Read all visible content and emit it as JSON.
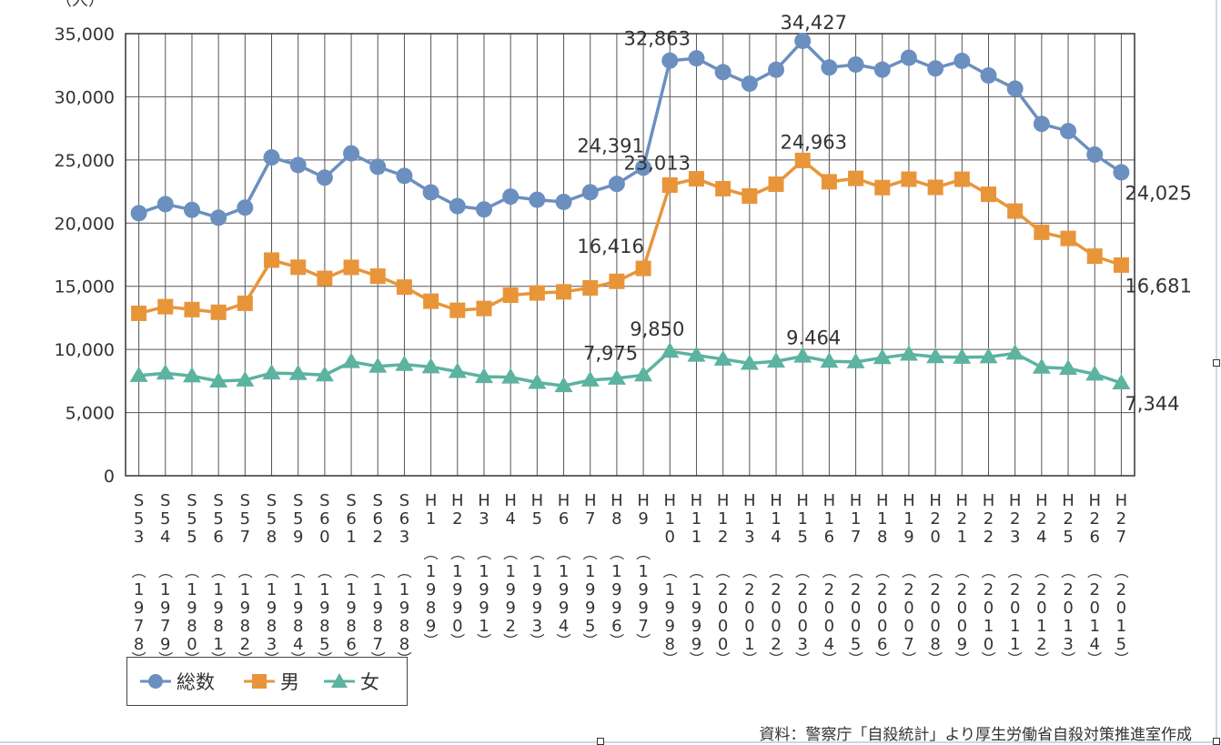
{
  "chart_data": {
    "type": "line",
    "unit_label": "（人）",
    "ylim": [
      0,
      35000
    ],
    "yticks": [
      "0",
      "5,000",
      "10,000",
      "15,000",
      "20,000",
      "25,000",
      "30,000",
      "35,000"
    ],
    "categories": [
      "S53（1978）",
      "S54（1979）",
      "S55（1980）",
      "S56（1981）",
      "S57（1982）",
      "S58（1983）",
      "S59（1984）",
      "S60（1985）",
      "S61（1986）",
      "S62（1987）",
      "S63（1988）",
      "H1（1989）",
      "H2（1990）",
      "H3（1991）",
      "H4（1992）",
      "H5（1993）",
      "H6（1994）",
      "H7（1995）",
      "H8（1996）",
      "H9（1997）",
      "H10（1998）",
      "H11（1999）",
      "H12（2000）",
      "H13（2001）",
      "H14（2002）",
      "H15（2003）",
      "H16（2004）",
      "H17（2005）",
      "H18（2006）",
      "H19（2007）",
      "H20（2008）",
      "H21（2009）",
      "H22（2010）",
      "H23（2011）",
      "H24（2012）",
      "H25（2013）",
      "H26（2014）",
      "H27（2015）"
    ],
    "era_labels": [
      "S53",
      "S54",
      "S55",
      "S56",
      "S57",
      "S58",
      "S59",
      "S60",
      "S61",
      "S62",
      "S63",
      "H1",
      "H2",
      "H3",
      "H4",
      "H5",
      "H6",
      "H7",
      "H8",
      "H9",
      "H10",
      "H11",
      "H12",
      "H13",
      "H14",
      "H15",
      "H16",
      "H17",
      "H18",
      "H19",
      "H20",
      "H21",
      "H22",
      "H23",
      "H24",
      "H25",
      "H26",
      "H27"
    ],
    "year_labels": [
      "1978",
      "1979",
      "1980",
      "1981",
      "1982",
      "1983",
      "1984",
      "1985",
      "1986",
      "1987",
      "1988",
      "1989",
      "1990",
      "1991",
      "1992",
      "1993",
      "1994",
      "1995",
      "1996",
      "1997",
      "1998",
      "1999",
      "2000",
      "2001",
      "2002",
      "2003",
      "2004",
      "2005",
      "2006",
      "2007",
      "2008",
      "2009",
      "2010",
      "2011",
      "2012",
      "2013",
      "2014",
      "2015"
    ],
    "series": [
      {
        "name": "総数",
        "color": "#6b8fbf",
        "marker": "circle",
        "values": [
          20788,
          21503,
          21048,
          20434,
          21228,
          25202,
          24596,
          23599,
          25524,
          24460,
          23742,
          22436,
          21346,
          21084,
          22104,
          21851,
          21679,
          22445,
          23104,
          24391,
          32863,
          33048,
          31957,
          31042,
          32143,
          34427,
          32325,
          32552,
          32155,
          33093,
          32249,
          32845,
          31690,
          30651,
          27858,
          27283,
          25427,
          24025
        ]
      },
      {
        "name": "男",
        "color": "#e8953a",
        "marker": "square",
        "values": [
          12859,
          13386,
          13155,
          12942,
          13654,
          17073,
          16508,
          15624,
          16497,
          15802,
          14934,
          13818,
          13102,
          13242,
          14296,
          14468,
          14560,
          14874,
          15393,
          16416,
          23013,
          23512,
          22727,
          22144,
          23080,
          24963,
          23272,
          23540,
          22813,
          23478,
          22831,
          23472,
          22283,
          20955,
          19273,
          18787,
          17386,
          16681
        ]
      },
      {
        "name": "女",
        "color": "#5bb3a0",
        "marker": "triangle",
        "values": [
          7929,
          8117,
          7893,
          7492,
          7574,
          8129,
          8088,
          7975,
          9027,
          8658,
          8808,
          8618,
          8244,
          7842,
          7808,
          7383,
          7119,
          7571,
          7711,
          7975,
          9850,
          9536,
          9230,
          8898,
          9063,
          9464,
          9053,
          9012,
          9342,
          9615,
          9418,
          9373,
          9407,
          9696,
          8585,
          8496,
          8041,
          7344
        ]
      }
    ],
    "annotations": [
      {
        "series": 0,
        "index": 19,
        "text": "24,391"
      },
      {
        "series": 0,
        "index": 20,
        "text": "32,863"
      },
      {
        "series": 0,
        "index": 25,
        "text": "34,427"
      },
      {
        "series": 0,
        "index": 37,
        "text": "24,025"
      },
      {
        "series": 1,
        "index": 19,
        "text": "16,416"
      },
      {
        "series": 1,
        "index": 20,
        "text": "23,013"
      },
      {
        "series": 1,
        "index": 25,
        "text": "24,963"
      },
      {
        "series": 1,
        "index": 37,
        "text": "16,681"
      },
      {
        "series": 2,
        "index": 19,
        "text": "7,975"
      },
      {
        "series": 2,
        "index": 20,
        "text": "9,850"
      },
      {
        "series": 2,
        "index": 25,
        "text": "9.464"
      },
      {
        "series": 2,
        "index": 37,
        "text": "7,344"
      }
    ],
    "grid": true,
    "legend_position": "bottom-left"
  },
  "legend": {
    "total": "総数",
    "male": "男",
    "female": "女"
  },
  "source": "資料：警察庁「自殺統計」より厚生労働省自殺対策推進室作成"
}
